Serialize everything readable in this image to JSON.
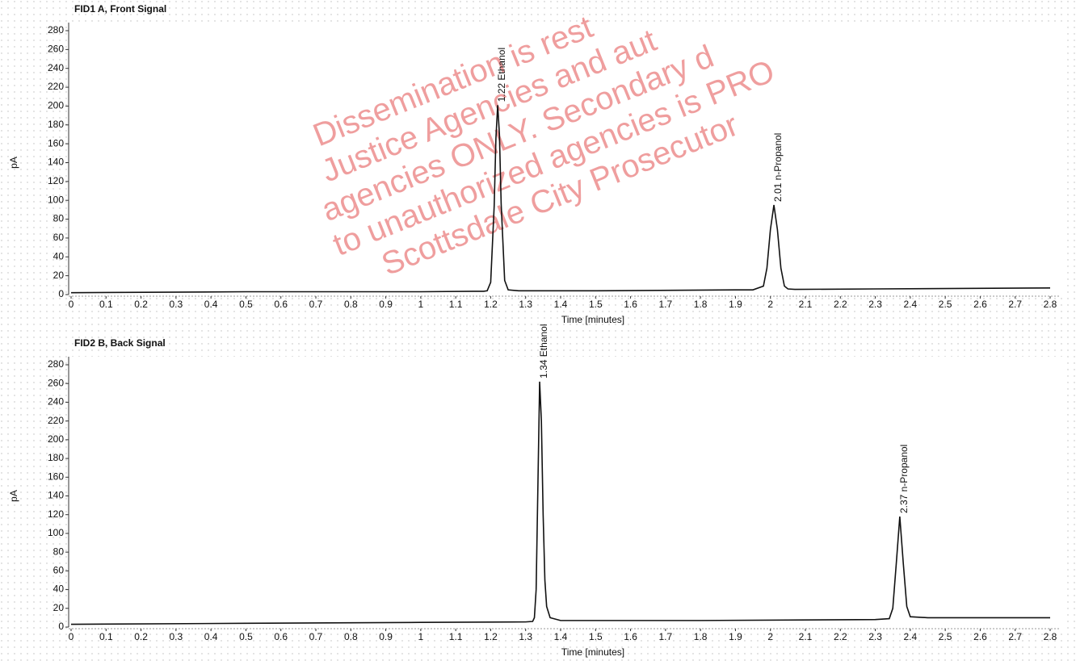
{
  "chart_data": [
    {
      "type": "line",
      "title": "FID1 A, Front Signal",
      "xlabel": "Time [minutes]",
      "ylabel": "pA",
      "x": [
        0,
        0.5,
        1.0,
        1.15,
        1.18,
        1.19,
        1.2,
        1.21,
        1.215,
        1.22,
        1.225,
        1.23,
        1.24,
        1.25,
        1.28,
        1.5,
        1.9,
        1.95,
        1.98,
        1.99,
        2.0,
        2.01,
        2.02,
        2.03,
        2.04,
        2.05,
        2.07,
        2.3,
        2.8
      ],
      "series": [
        {
          "color": "#111111",
          "values": [
            2,
            3,
            3,
            3.5,
            3.5,
            4,
            13,
            94,
            166,
            201,
            170,
            96,
            15,
            5,
            4,
            4,
            5,
            5,
            9,
            28,
            69,
            95,
            69,
            28,
            9,
            6,
            5.5,
            6,
            7
          ]
        }
      ],
      "xlim": [
        0,
        2.8
      ],
      "ylim": [
        0,
        280
      ],
      "xticks": [
        0,
        0.1,
        0.2,
        0.3,
        0.4,
        0.5,
        0.6,
        0.7,
        0.8,
        0.9,
        1,
        1.1,
        1.2,
        1.3,
        1.4,
        1.5,
        1.6,
        1.7,
        1.8,
        1.9,
        2,
        2.1,
        2.2,
        2.3,
        2.4,
        2.5,
        2.6,
        2.7,
        2.8
      ],
      "yticks": [
        0,
        20,
        40,
        60,
        80,
        100,
        120,
        140,
        160,
        180,
        200,
        220,
        240,
        260,
        280
      ],
      "annotations": [
        {
          "x": 1.22,
          "label": "1.22 Ethanol"
        },
        {
          "x": 2.01,
          "label": "2.01  n-Propanol"
        }
      ]
    },
    {
      "type": "line",
      "title": "FID2 B, Back Signal",
      "xlabel": "Time [minutes]",
      "ylabel": "pA",
      "x": [
        0,
        0.5,
        1.0,
        1.3,
        1.32,
        1.325,
        1.33,
        1.335,
        1.34,
        1.345,
        1.35,
        1.355,
        1.36,
        1.37,
        1.4,
        1.8,
        2.3,
        2.34,
        2.35,
        2.36,
        2.37,
        2.38,
        2.39,
        2.4,
        2.45,
        2.8
      ],
      "series": [
        {
          "color": "#111111",
          "values": [
            3,
            4,
            5,
            5.5,
            6,
            10,
            40,
            150,
            262,
            220,
            120,
            50,
            22,
            10,
            7,
            7,
            8,
            9,
            20,
            68,
            118,
            68,
            22,
            11,
            10,
            10
          ]
        }
      ],
      "xlim": [
        0,
        2.8
      ],
      "ylim": [
        0,
        280
      ],
      "xticks": [
        0,
        0.1,
        0.2,
        0.3,
        0.4,
        0.5,
        0.6,
        0.7,
        0.8,
        0.9,
        1,
        1.1,
        1.2,
        1.3,
        1.4,
        1.5,
        1.6,
        1.7,
        1.8,
        1.9,
        2,
        2.1,
        2.2,
        2.3,
        2.4,
        2.5,
        2.6,
        2.7,
        2.8
      ],
      "yticks": [
        0,
        20,
        40,
        60,
        80,
        100,
        120,
        140,
        160,
        180,
        200,
        220,
        240,
        260,
        280
      ],
      "annotations": [
        {
          "x": 1.34,
          "label": "1.34 Ethanol"
        },
        {
          "x": 2.37,
          "label": "2.37  n-Propanol"
        }
      ]
    }
  ],
  "watermark": {
    "lines": [
      "Dissemination is rest",
      "Justice Agencies and aut",
      "agencies ONLY. Secondary d",
      "to unauthorized agencies is PRO",
      "Scottsdale City Prosecutor"
    ]
  }
}
